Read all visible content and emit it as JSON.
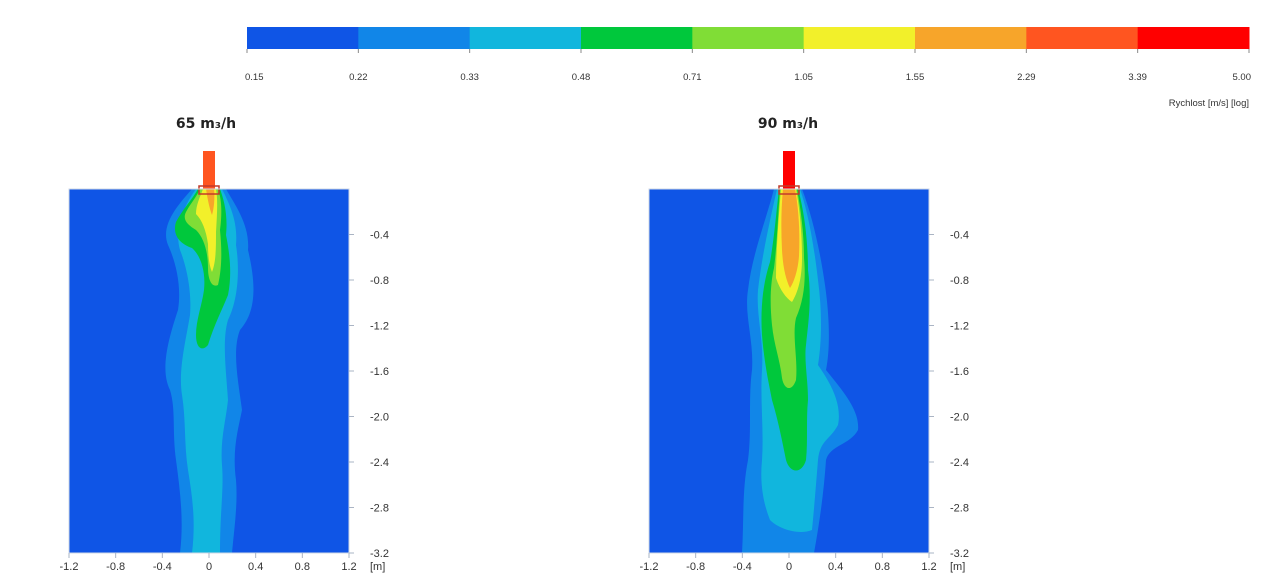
{
  "colorbar": {
    "title": "Rychlost [m/s] [log]",
    "tick_labels": [
      "0.15",
      "0.22",
      "0.33",
      "0.48",
      "0.71",
      "1.05",
      "1.55",
      "2.29",
      "3.39",
      "5.00"
    ],
    "colors": [
      "#0f55e6",
      "#1186e8",
      "#11b6dd",
      "#00c83c",
      "#80dd36",
      "#f2f02a",
      "#f7a52a",
      "#ff5520",
      "#ff0000"
    ]
  },
  "chart_data": [
    {
      "type": "heatmap",
      "title": "65 m₃/h",
      "x_tick_labels": [
        "-1.2",
        "-0.8",
        "-0.4",
        "0",
        "0.4",
        "0.8",
        "1.2"
      ],
      "x_unit": "[m]",
      "xlim": [
        -1.2,
        1.2
      ],
      "y_tick_labels": [
        "-0.4",
        "-0.8",
        "-1.2",
        "-1.6",
        "-2.0",
        "-2.4",
        "-2.8",
        "-3.2"
      ],
      "ylim": [
        -3.2,
        0
      ],
      "value_scale": "log",
      "inlet_level": 7
    },
    {
      "type": "heatmap",
      "title": "90 m₃/h",
      "x_tick_labels": [
        "-1.2",
        "-0.8",
        "-0.4",
        "0",
        "0.4",
        "0.8",
        "1.2"
      ],
      "x_unit": "[m]",
      "xlim": [
        -1.2,
        1.2
      ],
      "y_tick_labels": [
        "-0.4",
        "-0.8",
        "-1.2",
        "-1.6",
        "-2.0",
        "-2.4",
        "-2.8",
        "-3.2"
      ],
      "ylim": [
        -3.2,
        0
      ],
      "value_scale": "log",
      "inlet_level": 8
    }
  ]
}
